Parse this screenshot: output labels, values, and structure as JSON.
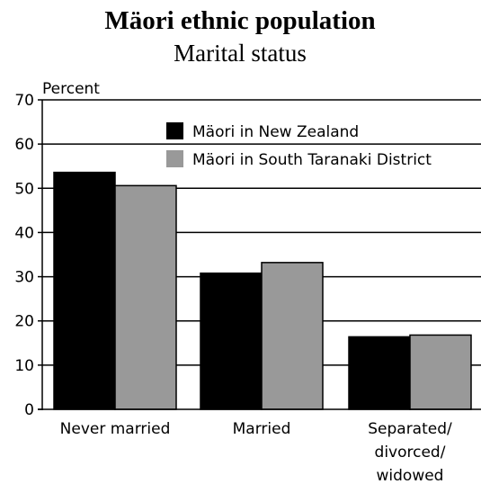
{
  "chart_data": {
    "type": "bar",
    "title": "Mäori ethnic population",
    "subtitle": "Marital status",
    "ylabel": "Percent",
    "xlabel": "",
    "ylim": [
      0,
      70
    ],
    "yticks": [
      "0",
      "10",
      "20",
      "30",
      "40",
      "50",
      "60",
      "70"
    ],
    "ytick_values": [
      0,
      10,
      20,
      30,
      40,
      50,
      60,
      70
    ],
    "grid": true,
    "legend_position": "top-right",
    "categories": [
      [
        "Never married"
      ],
      [
        "Married"
      ],
      [
        "Separated/",
        "divorced/",
        "widowed"
      ]
    ],
    "series": [
      {
        "name": "Mäori in New Zealand",
        "color": "#000000",
        "values": [
          53.6,
          30.8,
          16.4
        ]
      },
      {
        "name": "Mäori in South Taranaki District",
        "color": "#999999",
        "values": [
          50.6,
          33.2,
          16.8
        ]
      }
    ]
  }
}
